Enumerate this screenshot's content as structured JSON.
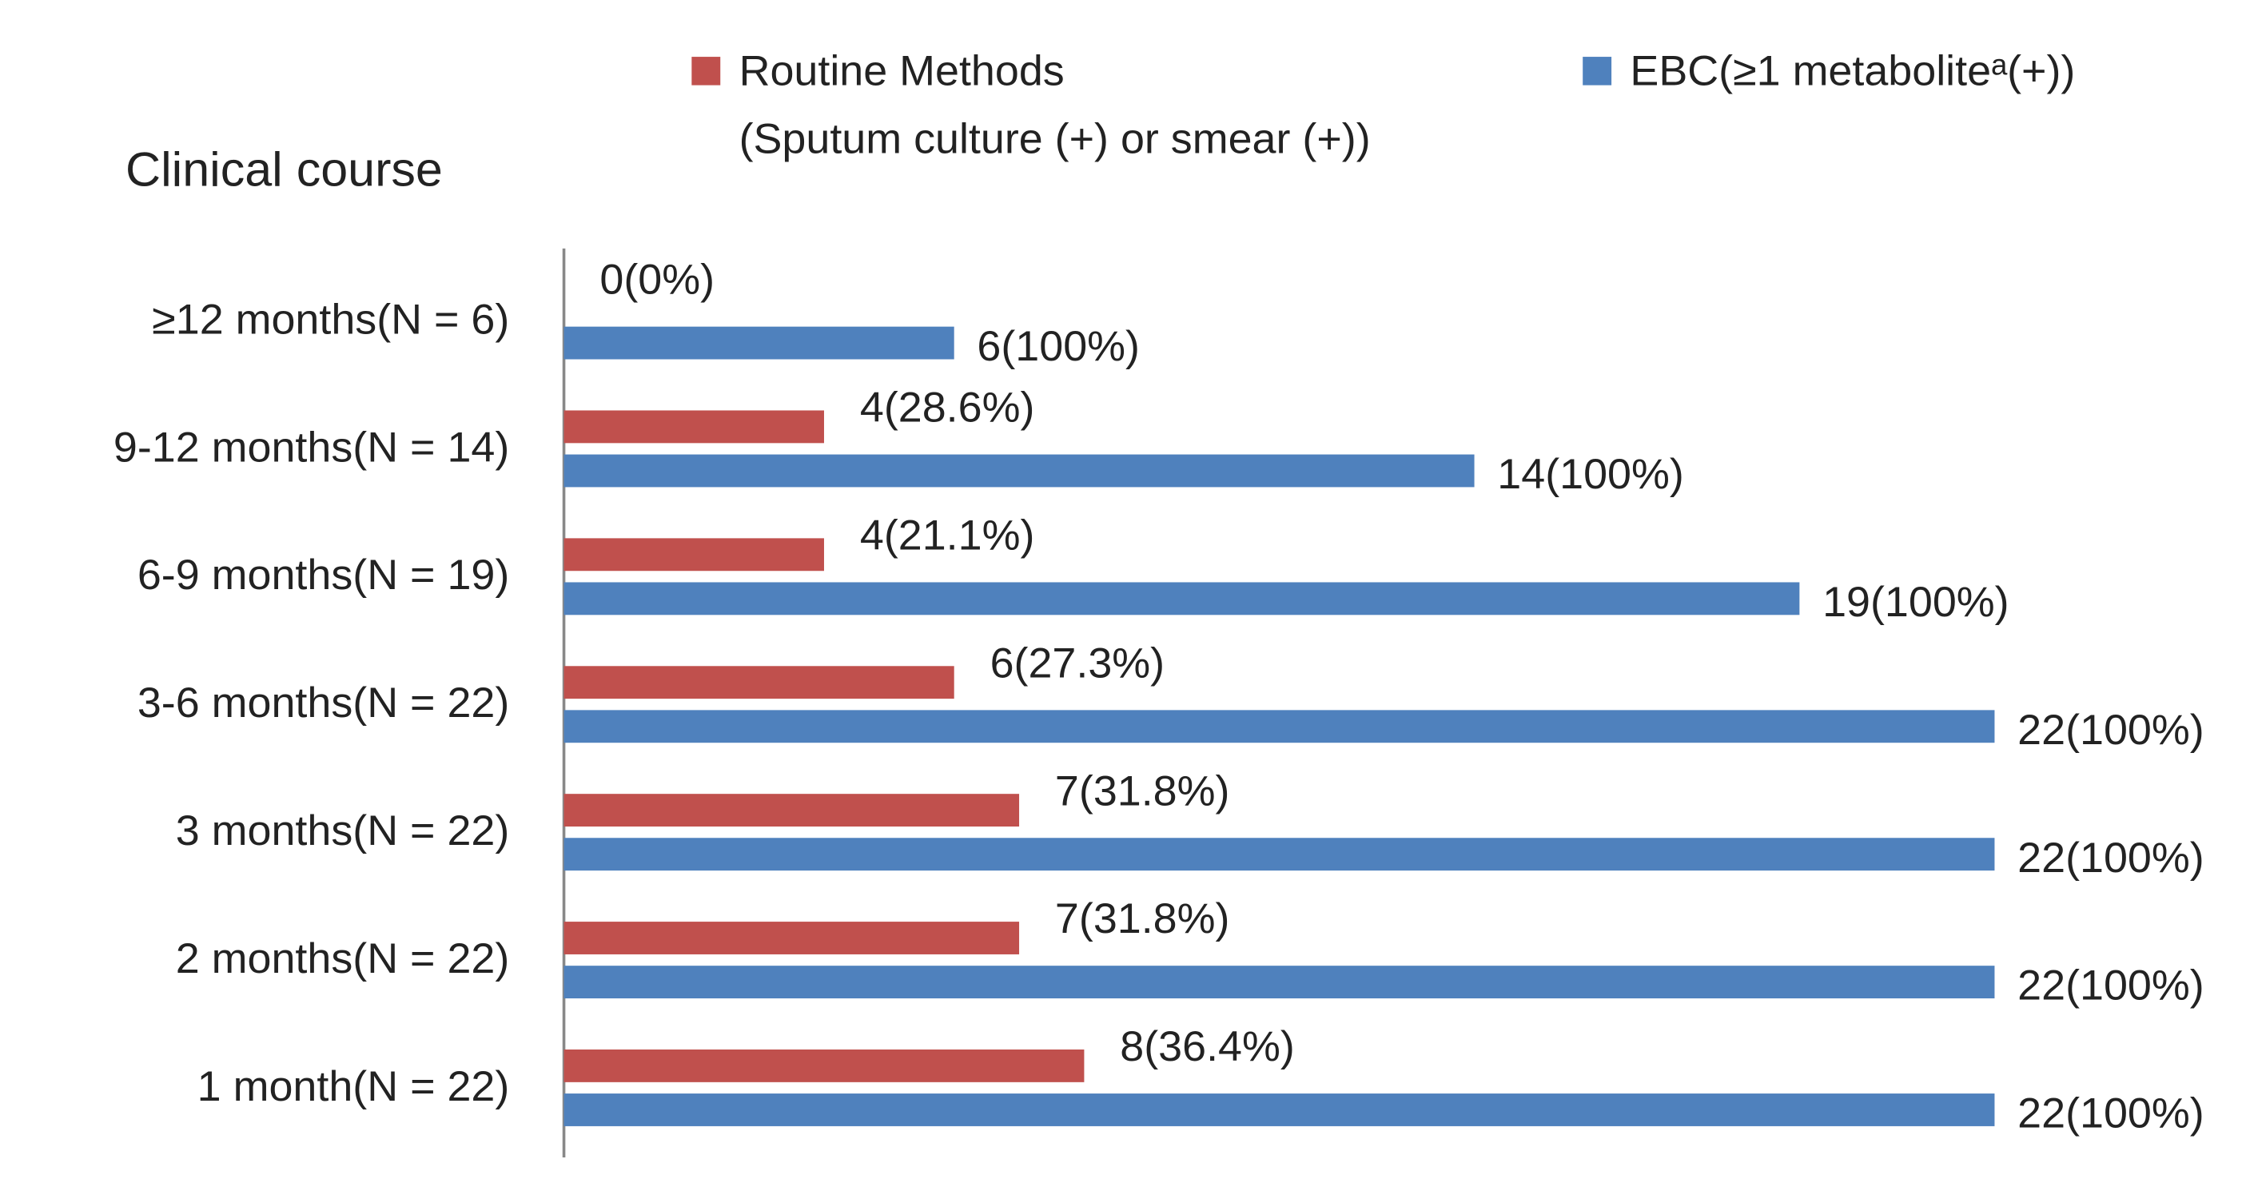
{
  "chart_data": {
    "type": "bar",
    "orientation": "horizontal",
    "y_label": "Clinical course",
    "categories": [
      "≥12 months(N = 6)",
      "9-12 months(N = 14)",
      "6-9 months(N = 19)",
      "3-6 months(N = 22)",
      "3 months(N = 22)",
      "2 months(N = 22)",
      "1 month(N = 22)"
    ],
    "series": [
      {
        "name": "Routine Methods\n(Sputum culture (+) or smear (+))",
        "color": "#c0504d",
        "values": [
          0,
          4,
          4,
          6,
          7,
          7,
          8
        ],
        "value_labels": [
          "0(0%)",
          "4(28.6%)",
          "4(21.1%)",
          "6(27.3%)",
          "7(31.8%)",
          "7(31.8%)",
          "8(36.4%)"
        ]
      },
      {
        "name": "EBC(≥1 metaboliteᵃ(+))",
        "color": "#4f81bd",
        "values": [
          6,
          14,
          19,
          22,
          22,
          22,
          22
        ],
        "value_labels": [
          "6(100%)",
          "14(100%)",
          "19(100%)",
          "22(100%)",
          "22(100%)",
          "22(100%)",
          "22(100%)"
        ]
      }
    ],
    "xlim": [
      0,
      22
    ]
  }
}
